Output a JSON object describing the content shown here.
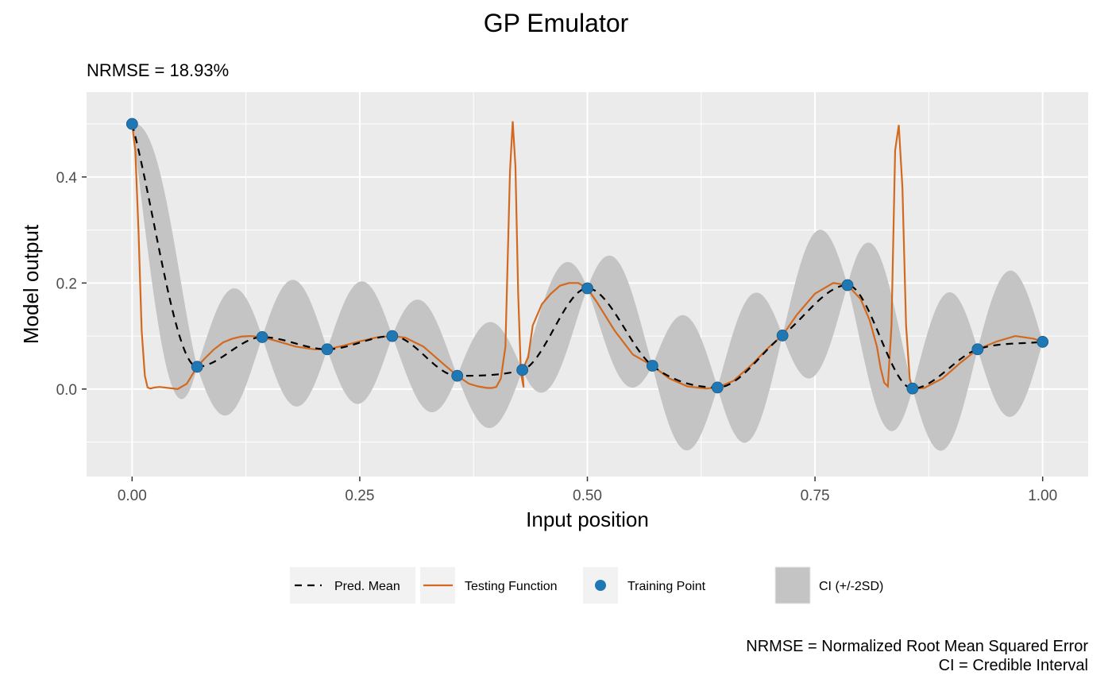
{
  "chart_data": {
    "type": "line",
    "title": "GP Emulator",
    "subtitle": "NRMSE = 18.93%",
    "xlabel": "Input position",
    "ylabel": "Model output",
    "xlim": [
      -0.05,
      1.05
    ],
    "ylim": [
      -0.165,
      0.56
    ],
    "x_ticks": [
      0.0,
      0.25,
      0.5,
      0.75,
      1.0
    ],
    "x_tick_labels": [
      "0.00",
      "0.25",
      "0.50",
      "0.75",
      "1.00"
    ],
    "y_ticks": [
      0.0,
      0.2,
      0.4
    ],
    "y_tick_labels": [
      "0.0",
      "0.2",
      "0.4"
    ],
    "grid": true,
    "legend_position": "bottom",
    "legend": [
      {
        "key": "mean",
        "label": "Pred. Mean"
      },
      {
        "key": "test",
        "label": "Testing Function"
      },
      {
        "key": "train",
        "label": "Training Point"
      },
      {
        "key": "ci",
        "label": "CI (+/-2SD)"
      }
    ],
    "colors": {
      "panel": "#ebebeb",
      "grid": "#ffffff",
      "ci": "#c4c4c4",
      "mean": "#000000",
      "test": "#d2691e",
      "train": "#1f78b4"
    },
    "training_points": {
      "x": [
        0.0,
        0.0714,
        0.1429,
        0.2143,
        0.2857,
        0.3571,
        0.4286,
        0.5,
        0.5714,
        0.6429,
        0.7143,
        0.7857,
        0.8571,
        0.9286,
        1.0
      ],
      "y": [
        0.5,
        0.042,
        0.098,
        0.075,
        0.1,
        0.025,
        0.036,
        0.19,
        0.044,
        0.003,
        0.101,
        0.196,
        0.001,
        0.075,
        0.089
      ]
    },
    "ci_halfwidth_peaks": [
      0.157,
      0.117,
      0.119,
      0.115,
      0.1,
      0.1,
      0.1,
      0.107,
      0.127,
      0.136,
      0.135,
      0.151,
      0.146,
      0.138
    ],
    "testing_function": {
      "x": [
        0.0,
        0.0035,
        0.007,
        0.0105,
        0.014,
        0.017,
        0.02,
        0.025,
        0.03,
        0.04,
        0.05,
        0.06,
        0.0714,
        0.08,
        0.09,
        0.1,
        0.11,
        0.12,
        0.13,
        0.1429,
        0.16,
        0.18,
        0.2,
        0.2143,
        0.23,
        0.25,
        0.27,
        0.2857,
        0.3,
        0.32,
        0.34,
        0.3571,
        0.37,
        0.38,
        0.39,
        0.395,
        0.4,
        0.405,
        0.41,
        0.415,
        0.418,
        0.421,
        0.424,
        0.427,
        0.43,
        0.4286,
        0.435,
        0.44,
        0.45,
        0.46,
        0.47,
        0.48,
        0.49,
        0.5,
        0.51,
        0.53,
        0.55,
        0.5714,
        0.59,
        0.61,
        0.63,
        0.6429,
        0.66,
        0.68,
        0.7,
        0.7143,
        0.73,
        0.75,
        0.77,
        0.7857,
        0.8,
        0.81,
        0.818,
        0.822,
        0.826,
        0.83,
        0.834,
        0.838,
        0.842,
        0.846,
        0.85,
        0.854,
        0.8571,
        0.87,
        0.89,
        0.91,
        0.9286,
        0.95,
        0.97,
        0.99,
        1.0
      ],
      "y": [
        0.5,
        0.45,
        0.3,
        0.11,
        0.025,
        0.003,
        0.001,
        0.003,
        0.004,
        0.002,
        0.0,
        0.01,
        0.042,
        0.058,
        0.075,
        0.088,
        0.095,
        0.099,
        0.1,
        0.098,
        0.09,
        0.08,
        0.075,
        0.075,
        0.081,
        0.09,
        0.098,
        0.1,
        0.097,
        0.08,
        0.05,
        0.025,
        0.01,
        0.005,
        0.002,
        0.002,
        0.004,
        0.02,
        0.08,
        0.41,
        0.505,
        0.42,
        0.18,
        0.03,
        0.003,
        0.036,
        0.06,
        0.12,
        0.16,
        0.18,
        0.195,
        0.2,
        0.2,
        0.19,
        0.165,
        0.11,
        0.065,
        0.044,
        0.02,
        0.005,
        0.001,
        0.003,
        0.015,
        0.045,
        0.08,
        0.101,
        0.14,
        0.18,
        0.2,
        0.196,
        0.17,
        0.13,
        0.08,
        0.04,
        0.012,
        0.005,
        0.12,
        0.45,
        0.498,
        0.38,
        0.12,
        0.02,
        0.001,
        0.002,
        0.02,
        0.05,
        0.075,
        0.09,
        0.1,
        0.095,
        0.089
      ]
    },
    "caption_lines": [
      "NRMSE = Normalized Root Mean Squared Error",
      "CI = Credible Interval"
    ]
  }
}
